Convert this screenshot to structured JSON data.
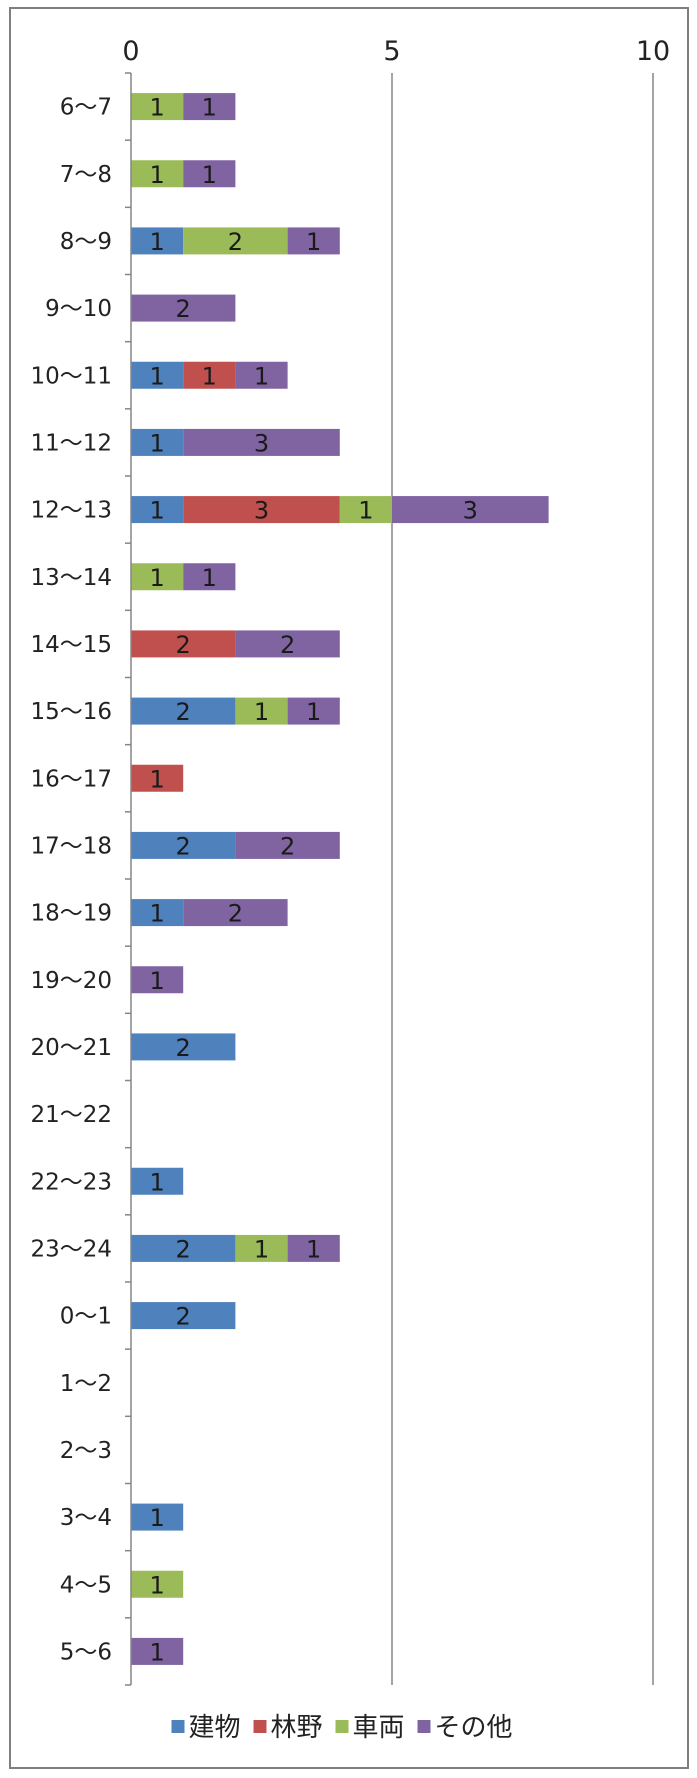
{
  "chart_data": {
    "type": "bar",
    "orientation": "horizontal",
    "stacked": true,
    "categories": [
      "6～7",
      "7～8",
      "8～9",
      "9～10",
      "10～11",
      "11～12",
      "12～13",
      "13～14",
      "14～15",
      "15～16",
      "16～17",
      "17～18",
      "18～19",
      "19～20",
      "20～21",
      "21～22",
      "22～23",
      "23～24",
      "0～1",
      "1～2",
      "2～3",
      "3～4",
      "4～5",
      "5～6"
    ],
    "series": [
      {
        "name": "建物",
        "color": "#4f81bd",
        "values": [
          0,
          0,
          1,
          0,
          1,
          1,
          1,
          0,
          0,
          2,
          0,
          2,
          1,
          0,
          2,
          0,
          1,
          2,
          2,
          0,
          0,
          1,
          0,
          0
        ]
      },
      {
        "name": "林野",
        "color": "#c0504d",
        "values": [
          0,
          0,
          0,
          0,
          1,
          0,
          3,
          0,
          2,
          0,
          1,
          0,
          0,
          0,
          0,
          0,
          0,
          0,
          0,
          0,
          0,
          0,
          0,
          0
        ]
      },
      {
        "name": "車両",
        "color": "#9bbb59",
        "values": [
          1,
          1,
          2,
          0,
          0,
          0,
          1,
          1,
          0,
          1,
          0,
          0,
          0,
          0,
          0,
          0,
          0,
          1,
          0,
          0,
          0,
          0,
          1,
          0
        ]
      },
      {
        "name": "その他",
        "color": "#8064a2",
        "values": [
          1,
          1,
          1,
          2,
          1,
          3,
          3,
          1,
          2,
          1,
          0,
          2,
          2,
          1,
          0,
          0,
          0,
          1,
          0,
          0,
          0,
          0,
          0,
          1
        ]
      }
    ],
    "xlim": [
      0,
      10
    ],
    "x_ticks": [
      "0",
      "5",
      "10"
    ],
    "grid": true,
    "legend": "bottom",
    "data_labels": true
  }
}
